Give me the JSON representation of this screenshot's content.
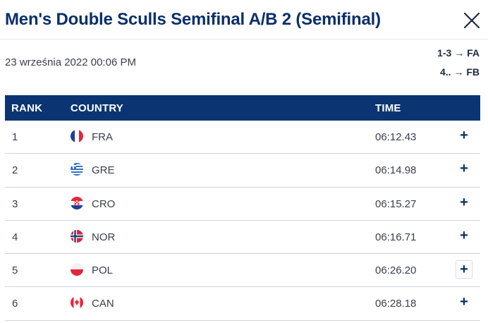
{
  "header": {
    "title": "Men's Double Sculls Semifinal A/B 2 (Semifinal)"
  },
  "meta": {
    "date": "23 września 2022 00:06 PM",
    "qualification": [
      "1-3 → FA",
      "4.. → FB"
    ]
  },
  "table": {
    "columns": {
      "rank": "RANK",
      "country": "COUNTRY",
      "time": "TIME"
    },
    "expand_symbol": "+",
    "rows": [
      {
        "rank": "1",
        "country": "FRA",
        "flag": "flag-france-icon",
        "time": "06:12.43"
      },
      {
        "rank": "2",
        "country": "GRE",
        "flag": "flag-greece-icon",
        "time": "06:14.98"
      },
      {
        "rank": "3",
        "country": "CRO",
        "flag": "flag-croatia-icon",
        "time": "06:15.27"
      },
      {
        "rank": "4",
        "country": "NOR",
        "flag": "flag-norway-icon",
        "time": "06:16.71"
      },
      {
        "rank": "5",
        "country": "POL",
        "flag": "flag-poland-icon",
        "time": "06:26.20"
      },
      {
        "rank": "6",
        "country": "CAN",
        "flag": "flag-canada-icon",
        "time": "06:28.18"
      }
    ]
  },
  "colors": {
    "header_bg": "#0a3572",
    "title": "#0a2f6b",
    "text": "#3a3f4b"
  }
}
